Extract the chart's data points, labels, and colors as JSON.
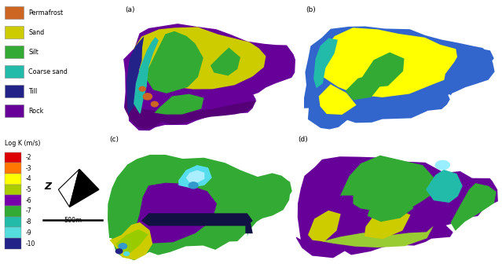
{
  "legend1_items": [
    {
      "label": "Permafrost",
      "color": "#CC6622"
    },
    {
      "label": "Sand",
      "color": "#CCCC00"
    },
    {
      "label": "Silt",
      "color": "#33AA33"
    },
    {
      "label": "Coarse sand",
      "color": "#22BBAA"
    },
    {
      "label": "Till",
      "color": "#222288"
    },
    {
      "label": "Rock",
      "color": "#660099"
    }
  ],
  "legend2_label": "Log K (m/s)",
  "legend2_items": [
    {
      "label": "-2",
      "color": "#DD0000"
    },
    {
      "label": "-3",
      "color": "#FF7700"
    },
    {
      "label": "-4",
      "color": "#FFFF00"
    },
    {
      "label": "-5",
      "color": "#AACC00"
    },
    {
      "label": "-6",
      "color": "#7700AA"
    },
    {
      "label": "-7",
      "color": "#33AA33"
    },
    {
      "label": "-8",
      "color": "#22BBAA"
    },
    {
      "label": "-9",
      "color": "#55DDDD"
    },
    {
      "label": "-10",
      "color": "#222288"
    }
  ],
  "scale_label": "500m",
  "bg": "#FFFFFF",
  "panel_labels": [
    "(a)",
    "(b)",
    "(c)",
    "(d)"
  ]
}
